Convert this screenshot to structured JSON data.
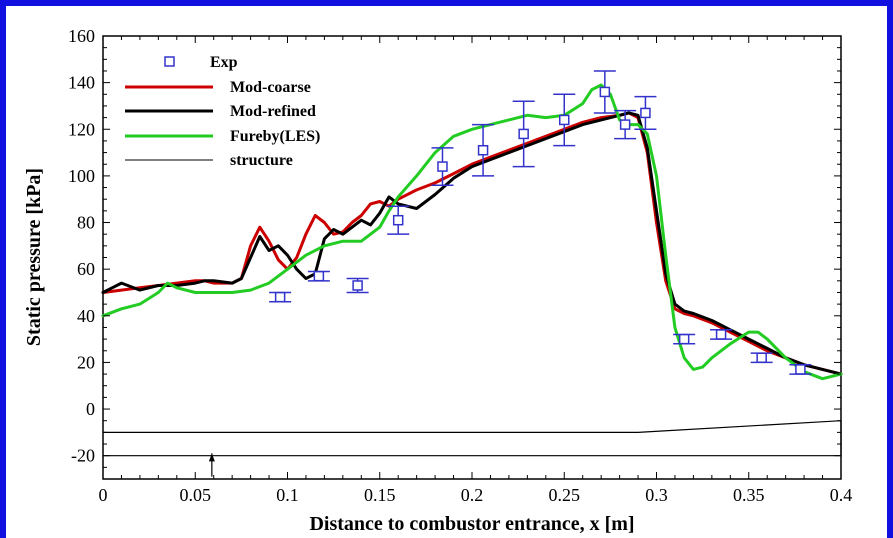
{
  "chart_data": {
    "type": "line",
    "title": "",
    "xlabel": "Distance to combustor entrance, x [m]",
    "ylabel": "Static pressure [kPa]",
    "xlim": [
      0,
      0.4
    ],
    "ylim": [
      -30,
      160
    ],
    "xticks": [
      0,
      0.05,
      0.1,
      0.15,
      0.2,
      0.25,
      0.3,
      0.35,
      0.4
    ],
    "xtick_labels": [
      "0",
      "0.05",
      "0.1",
      "0.15",
      "0.2",
      "0.25",
      "0.3",
      "0.35",
      "0.4"
    ],
    "yticks": [
      -20,
      0,
      20,
      40,
      60,
      80,
      100,
      120,
      140,
      160
    ],
    "ytick_labels": [
      "-20",
      "0",
      "20",
      "40",
      "60",
      "80",
      "100",
      "120",
      "140",
      "160"
    ],
    "grid": false,
    "legend_position": "top-left",
    "legend": [
      "Exp",
      "Mod-coarse",
      "Mod-refined",
      "Fureby(LES)",
      "structure"
    ],
    "colors": {
      "exp": "#3333cc",
      "mod_coarse": "#cc0000",
      "mod_refined": "#000000",
      "fureby": "#22cc22",
      "structure": "#000000",
      "frame": "#1010e0"
    },
    "series": [
      {
        "name": "Exp",
        "kind": "markers-with-errorbars",
        "x": [
          0.096,
          0.117,
          0.138,
          0.16,
          0.184,
          0.206,
          0.228,
          0.25,
          0.272,
          0.283,
          0.294,
          0.315,
          0.335,
          0.357,
          0.378
        ],
        "y": [
          48,
          57,
          53,
          81,
          104,
          111,
          118,
          124,
          136,
          122,
          127,
          30,
          32,
          22,
          17
        ],
        "err": [
          2,
          2,
          3,
          6,
          8,
          11,
          14,
          11,
          9,
          6,
          7,
          2,
          2,
          2,
          2
        ]
      },
      {
        "name": "Mod-coarse",
        "x": [
          0,
          0.01,
          0.02,
          0.03,
          0.04,
          0.05,
          0.055,
          0.06,
          0.07,
          0.075,
          0.08,
          0.085,
          0.09,
          0.095,
          0.1,
          0.105,
          0.11,
          0.115,
          0.12,
          0.125,
          0.13,
          0.135,
          0.14,
          0.145,
          0.15,
          0.155,
          0.16,
          0.17,
          0.18,
          0.19,
          0.2,
          0.21,
          0.22,
          0.23,
          0.24,
          0.25,
          0.26,
          0.27,
          0.28,
          0.285,
          0.29,
          0.295,
          0.3,
          0.305,
          0.31,
          0.315,
          0.32,
          0.33,
          0.34,
          0.35,
          0.36,
          0.37,
          0.38,
          0.39,
          0.4
        ],
        "y": [
          50,
          51,
          52,
          53,
          54,
          55,
          55,
          54,
          54,
          56,
          70,
          78,
          72,
          64,
          60,
          65,
          75,
          83,
          80,
          75,
          76,
          80,
          83,
          88,
          89,
          87,
          90,
          94,
          97,
          101,
          105,
          108,
          111,
          114,
          117,
          120,
          123,
          125,
          126,
          127,
          125,
          110,
          80,
          55,
          43,
          41,
          40,
          37,
          33,
          29,
          25,
          22,
          19,
          17,
          15
        ]
      },
      {
        "name": "Mod-refined",
        "x": [
          0,
          0.005,
          0.01,
          0.02,
          0.03,
          0.04,
          0.05,
          0.055,
          0.06,
          0.07,
          0.075,
          0.08,
          0.085,
          0.09,
          0.095,
          0.1,
          0.105,
          0.11,
          0.115,
          0.12,
          0.125,
          0.13,
          0.135,
          0.14,
          0.145,
          0.15,
          0.155,
          0.16,
          0.17,
          0.18,
          0.19,
          0.2,
          0.21,
          0.22,
          0.23,
          0.24,
          0.25,
          0.26,
          0.27,
          0.28,
          0.285,
          0.29,
          0.295,
          0.3,
          0.305,
          0.31,
          0.315,
          0.32,
          0.33,
          0.34,
          0.35,
          0.36,
          0.37,
          0.38,
          0.39,
          0.4
        ],
        "y": [
          50,
          52,
          54,
          51,
          53,
          53,
          54,
          55,
          55,
          54,
          56,
          65,
          74,
          68,
          70,
          66,
          60,
          56,
          58,
          73,
          77,
          75,
          78,
          81,
          79,
          84,
          91,
          88,
          86,
          92,
          99,
          104,
          107,
          110,
          113,
          116,
          119,
          122,
          124,
          126,
          127,
          126,
          112,
          85,
          58,
          45,
          42,
          41,
          38,
          34,
          30,
          26,
          22,
          19,
          17,
          15
        ]
      },
      {
        "name": "Fureby(LES)",
        "x": [
          0,
          0.01,
          0.02,
          0.03,
          0.035,
          0.04,
          0.05,
          0.06,
          0.07,
          0.08,
          0.09,
          0.1,
          0.11,
          0.12,
          0.13,
          0.14,
          0.15,
          0.155,
          0.16,
          0.17,
          0.18,
          0.19,
          0.2,
          0.21,
          0.22,
          0.23,
          0.24,
          0.25,
          0.26,
          0.265,
          0.27,
          0.275,
          0.28,
          0.285,
          0.29,
          0.295,
          0.3,
          0.305,
          0.31,
          0.315,
          0.32,
          0.325,
          0.33,
          0.34,
          0.35,
          0.355,
          0.36,
          0.37,
          0.38,
          0.39,
          0.4
        ],
        "y": [
          40,
          43,
          45,
          50,
          54,
          52,
          50,
          50,
          50,
          51,
          54,
          60,
          66,
          70,
          72,
          72,
          78,
          85,
          91,
          100,
          110,
          117,
          120,
          122,
          124,
          126,
          125,
          126,
          131,
          137,
          139,
          135,
          124,
          122,
          122,
          118,
          100,
          66,
          35,
          22,
          17,
          18,
          22,
          28,
          33,
          33,
          30,
          22,
          16,
          13,
          15
        ]
      },
      {
        "name": "structure",
        "kind": "outline",
        "x": [
          0,
          0.29,
          0.4,
          0.4,
          0
        ],
        "y": [
          -10,
          -10,
          -5,
          -20,
          -20
        ]
      }
    ],
    "annotations": [
      {
        "kind": "arrow",
        "x": 0.059,
        "y_from": -29,
        "y_to": -19
      }
    ]
  }
}
